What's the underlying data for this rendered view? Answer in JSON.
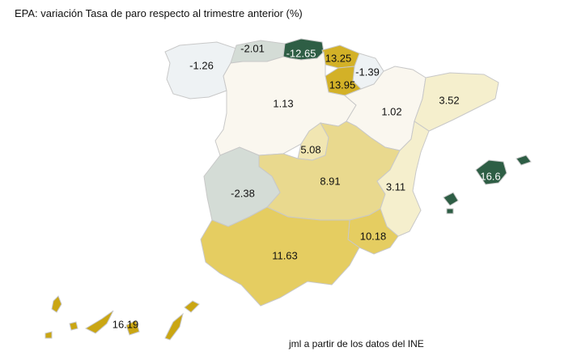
{
  "title": "EPA: variación Tasa de paro respecto al trimestre anterior (%)",
  "source": "jml a partir de los datos del INE",
  "colors": {
    "dark_green": "#2e5e45",
    "gray_green": "#d4dcd6",
    "pale_blue": "#eef2f4",
    "ivory": "#faf7ef",
    "light_beige": "#f5efcd",
    "beige": "#f1e6b2",
    "tan": "#e9d98e",
    "gold": "#e5cd61",
    "strong_gold": "#d3b127",
    "mustard": "#caa613"
  },
  "regions": [
    {
      "name": "Galicia",
      "value": "-1.26",
      "fill": "pale_blue",
      "text": "#111111"
    },
    {
      "name": "Asturias",
      "value": "-2.01",
      "fill": "gray_green",
      "text": "#111111"
    },
    {
      "name": "Cantabria",
      "value": "-12.65",
      "fill": "dark_green",
      "text": "#ffffff"
    },
    {
      "name": "País Vasco",
      "value": "13.25",
      "fill": "strong_gold",
      "text": "#111111"
    },
    {
      "name": "Navarra",
      "value": "-1.39",
      "fill": "pale_blue",
      "text": "#111111"
    },
    {
      "name": "La Rioja",
      "value": "13.95",
      "fill": "strong_gold",
      "text": "#111111"
    },
    {
      "name": "Castilla y León",
      "value": "1.13",
      "fill": "ivory",
      "text": "#111111"
    },
    {
      "name": "Aragón",
      "value": "1.02",
      "fill": "ivory",
      "text": "#111111"
    },
    {
      "name": "Cataluña",
      "value": "3.52",
      "fill": "light_beige",
      "text": "#111111"
    },
    {
      "name": "Madrid",
      "value": "5.08",
      "fill": "beige",
      "text": "#111111"
    },
    {
      "name": "Castilla-La Mancha",
      "value": "8.91",
      "fill": "tan",
      "text": "#111111"
    },
    {
      "name": "Comunidad Valenciana",
      "value": "3.11",
      "fill": "light_beige",
      "text": "#111111"
    },
    {
      "name": "Extremadura",
      "value": "-2.38",
      "fill": "gray_green",
      "text": "#111111"
    },
    {
      "name": "Murcia",
      "value": "10.18",
      "fill": "gold",
      "text": "#111111"
    },
    {
      "name": "Andalucía",
      "value": "11.63",
      "fill": "gold",
      "text": "#111111"
    },
    {
      "name": "Illes Balears",
      "value": "16.6",
      "fill": "dark_green",
      "text": "#ffffff"
    },
    {
      "name": "Canarias",
      "value": "16.19",
      "fill": "mustard",
      "text": "#111111"
    }
  ]
}
